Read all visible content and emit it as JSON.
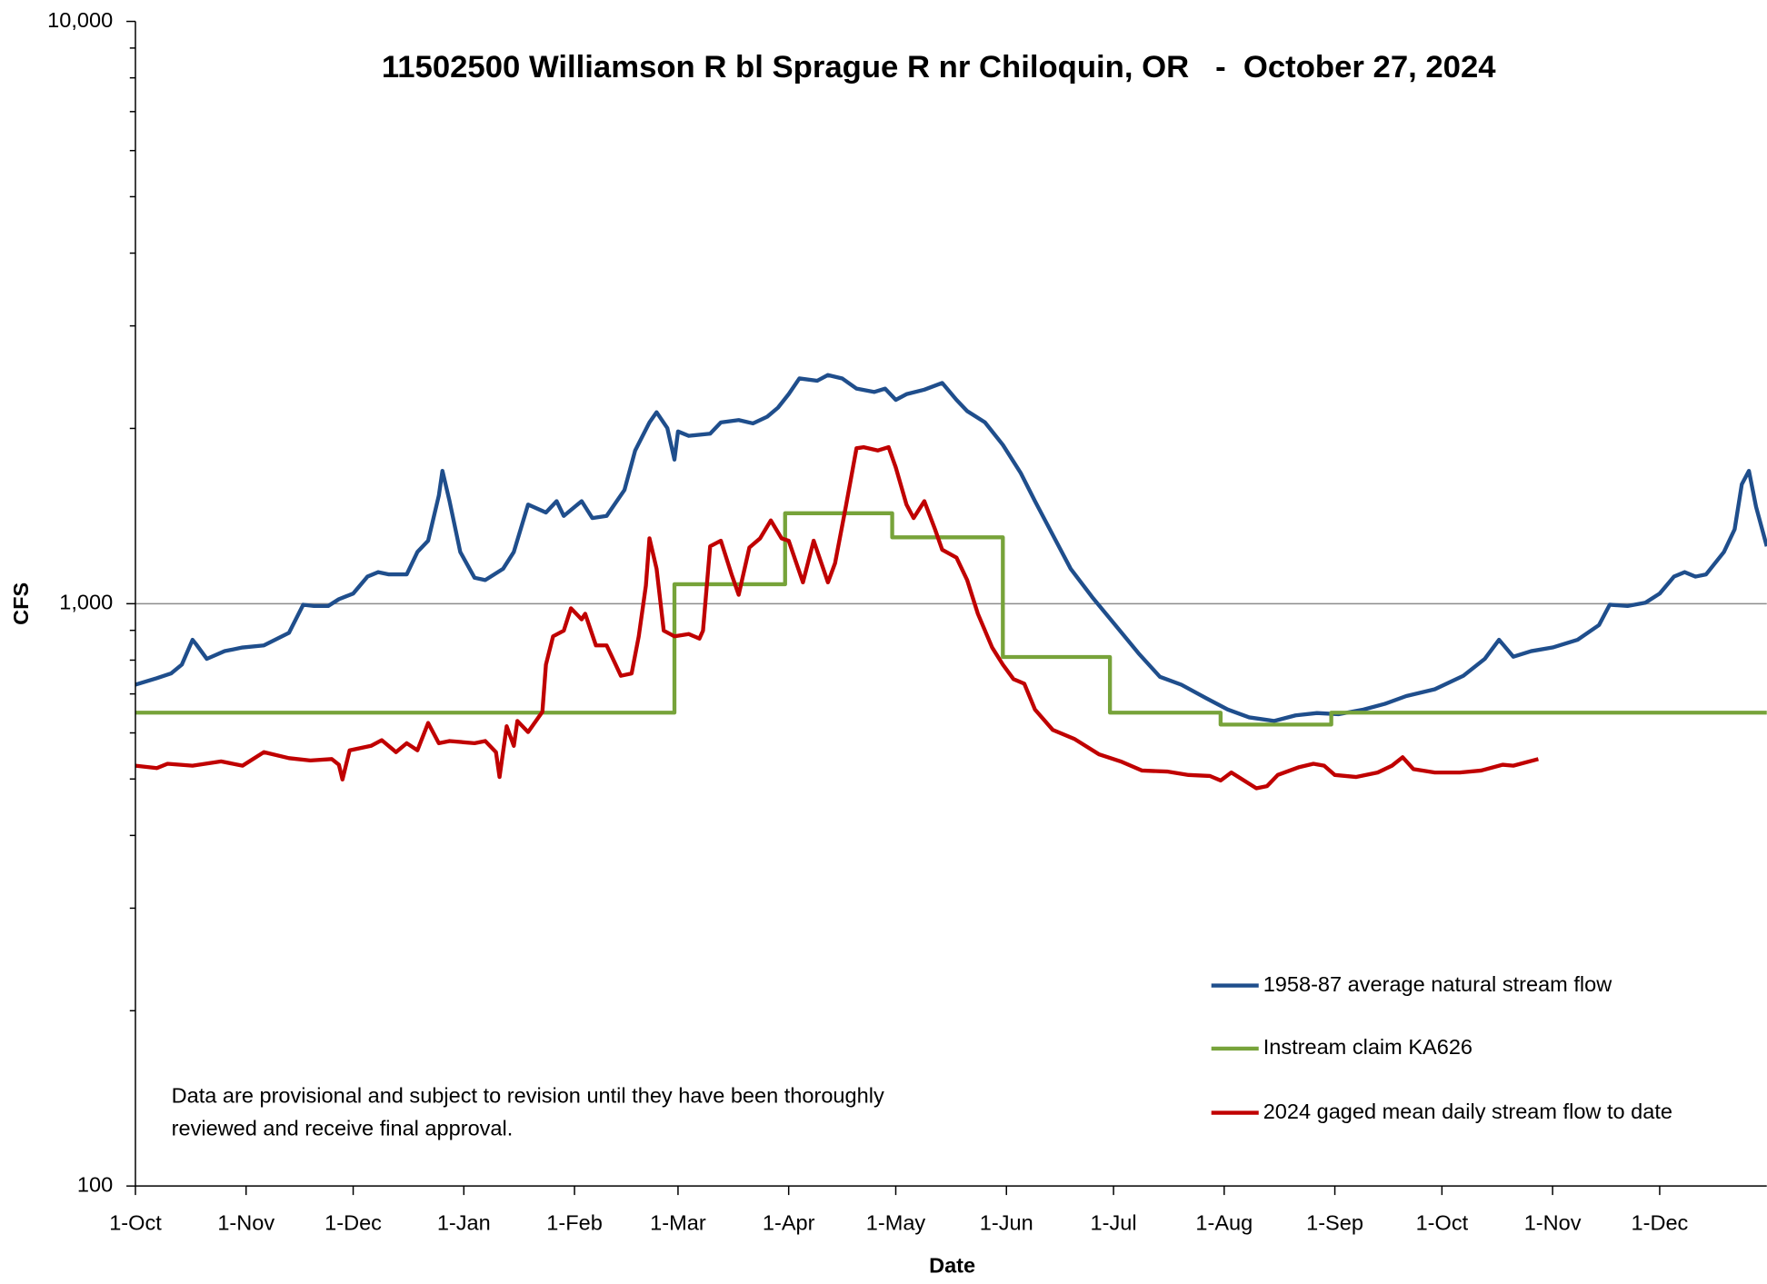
{
  "chart_data": {
    "type": "line",
    "title": "11502500 Williamson R bl Sprague R nr Chiloquin, OR   -  October 27, 2024",
    "x_label": "Date",
    "y_label": "CFS",
    "note": [
      "Data are provisional and subject to revision until they have been thoroughly",
      "reviewed and receive final approval."
    ],
    "log_y": true,
    "grid": true,
    "legend": "lower right",
    "xlim": [
      0,
      457
    ],
    "xticks": [
      {
        "value": 0,
        "label": "1-Oct"
      },
      {
        "value": 31,
        "label": "1-Nov"
      },
      {
        "value": 61,
        "label": "1-Dec"
      },
      {
        "value": 92,
        "label": "1-Jan"
      },
      {
        "value": 123,
        "label": "1-Feb"
      },
      {
        "value": 152,
        "label": "1-Mar"
      },
      {
        "value": 183,
        "label": "1-Apr"
      },
      {
        "value": 213,
        "label": "1-May"
      },
      {
        "value": 244,
        "label": "1-Jun"
      },
      {
        "value": 274,
        "label": "1-Jul"
      },
      {
        "value": 305,
        "label": "1-Aug"
      },
      {
        "value": 336,
        "label": "1-Sep"
      },
      {
        "value": 366,
        "label": "1-Oct"
      },
      {
        "value": 397,
        "label": "1-Nov"
      },
      {
        "value": 427,
        "label": "1-Dec"
      }
    ],
    "ylim": [
      100,
      10000
    ],
    "yticks": [
      100,
      {
        "value": 1000,
        "label": "1,000"
      },
      {
        "value": 10000,
        "label": "10,000"
      }
    ],
    "yminor": [
      200,
      300,
      400,
      500,
      600,
      700,
      800,
      900,
      2000,
      3000,
      4000,
      5000,
      6000,
      7000,
      8000,
      9000
    ],
    "series": [
      {
        "name": "1958-87 average natural stream flow",
        "color": "#1f4e8c",
        "x": [
          0,
          6,
          10,
          13,
          16,
          17,
          20,
          25,
          30,
          36,
          43,
          47,
          50,
          54,
          57,
          61,
          65,
          68,
          71,
          76,
          79,
          82,
          85,
          86,
          88,
          91,
          95,
          98,
          103,
          106,
          110,
          115,
          118,
          120,
          125,
          128,
          132,
          137,
          140,
          144,
          146,
          149,
          151,
          152,
          155,
          161,
          164,
          169,
          173,
          177,
          180,
          183,
          186,
          191,
          194,
          198,
          202,
          207,
          210,
          213,
          216,
          221,
          226,
          230,
          233,
          238,
          243,
          248,
          252,
          257,
          262,
          268,
          274,
          281,
          287,
          293,
          300,
          306,
          312,
          319,
          325,
          331,
          337,
          344,
          350,
          356,
          364,
          372,
          378,
          382,
          386,
          391,
          397,
          404,
          410,
          413,
          418,
          423,
          427,
          431,
          434,
          437,
          440,
          445,
          448,
          450,
          452,
          454,
          457
        ],
        "values": [
          726,
          745,
          759,
          786,
          867,
          852,
          804,
          829,
          841,
          848,
          891,
          996,
          991,
          991,
          1018,
          1041,
          1113,
          1133,
          1123,
          1123,
          1227,
          1283,
          1534,
          1691,
          1500,
          1227,
          1108,
          1098,
          1148,
          1227,
          1480,
          1434,
          1500,
          1415,
          1500,
          1403,
          1415,
          1568,
          1833,
          2048,
          2132,
          2003,
          1768,
          1976,
          1942,
          1959,
          2048,
          2067,
          2040,
          2095,
          2171,
          2290,
          2437,
          2415,
          2470,
          2437,
          2341,
          2310,
          2341,
          2239,
          2290,
          2331,
          2394,
          2239,
          2142,
          2048,
          1874,
          1677,
          1500,
          1312,
          1148,
          1027,
          927,
          822,
          749,
          726,
          688,
          658,
          638,
          629,
          643,
          649,
          646,
          658,
          673,
          694,
          713,
          752,
          804,
          867,
          811,
          829,
          841,
          867,
          919,
          996,
          991,
          1004,
          1041,
          1113,
          1133,
          1113,
          1123,
          1227,
          1342,
          1603,
          1691,
          1467,
          1255
        ]
      },
      {
        "name": "Instream claim KA626",
        "color": "#77a33a",
        "x": [
          0,
          151,
          151,
          182,
          182,
          212,
          212,
          243,
          243,
          273,
          273,
          304,
          304,
          335,
          335,
          457
        ],
        "values": [
          650,
          650,
          1080,
          1080,
          1430,
          1430,
          1300,
          1300,
          810,
          810,
          650,
          650,
          620,
          620,
          650,
          650
        ]
      },
      {
        "name": "2024 gaged mean daily stream flow to date",
        "color": "#c00000",
        "x": [
          0,
          6,
          9,
          16,
          24,
          30,
          36,
          43,
          49,
          55,
          57,
          58,
          60,
          66,
          69,
          73,
          76,
          79,
          82,
          85,
          88,
          95,
          98,
          101,
          102,
          104,
          106,
          107,
          110,
          114,
          115,
          117,
          120,
          122,
          125,
          126,
          129,
          132,
          136,
          139,
          141,
          143,
          144,
          146,
          148,
          151,
          155,
          158,
          159,
          161,
          164,
          167,
          169,
          172,
          175,
          178,
          181,
          183,
          187,
          190,
          194,
          196,
          199,
          202,
          204,
          208,
          211,
          213,
          216,
          218,
          221,
          224,
          226,
          230,
          233,
          236,
          240,
          243,
          246,
          249,
          252,
          257,
          263,
          270,
          276,
          282,
          289,
          295,
          301,
          304,
          307,
          314,
          317,
          320,
          326,
          330,
          333,
          336,
          342,
          348,
          352,
          355,
          358,
          364,
          371,
          377,
          383,
          386,
          393
        ],
        "values": [
          527,
          522,
          531,
          527,
          536,
          527,
          556,
          543,
          538,
          541,
          529,
          499,
          560,
          570,
          583,
          556,
          576,
          560,
          624,
          576,
          581,
          576,
          581,
          556,
          504,
          616,
          570,
          629,
          602,
          652,
          786,
          879,
          899,
          982,
          940,
          961,
          848,
          848,
          752,
          759,
          879,
          1074,
          1295,
          1148,
          899,
          879,
          887,
          871,
          899,
          1255,
          1283,
          1123,
          1036,
          1249,
          1295,
          1390,
          1295,
          1283,
          1088,
          1283,
          1088,
          1174,
          1467,
          1849,
          1857,
          1833,
          1857,
          1714,
          1480,
          1403,
          1500,
          1342,
          1238,
          1200,
          1098,
          961,
          841,
          786,
          742,
          729,
          658,
          607,
          586,
          551,
          536,
          517,
          515,
          508,
          506,
          497,
          513,
          482,
          486,
          508,
          524,
          531,
          527,
          508,
          504,
          513,
          527,
          545,
          520,
          513,
          513,
          517,
          529,
          527,
          541
        ]
      }
    ]
  }
}
